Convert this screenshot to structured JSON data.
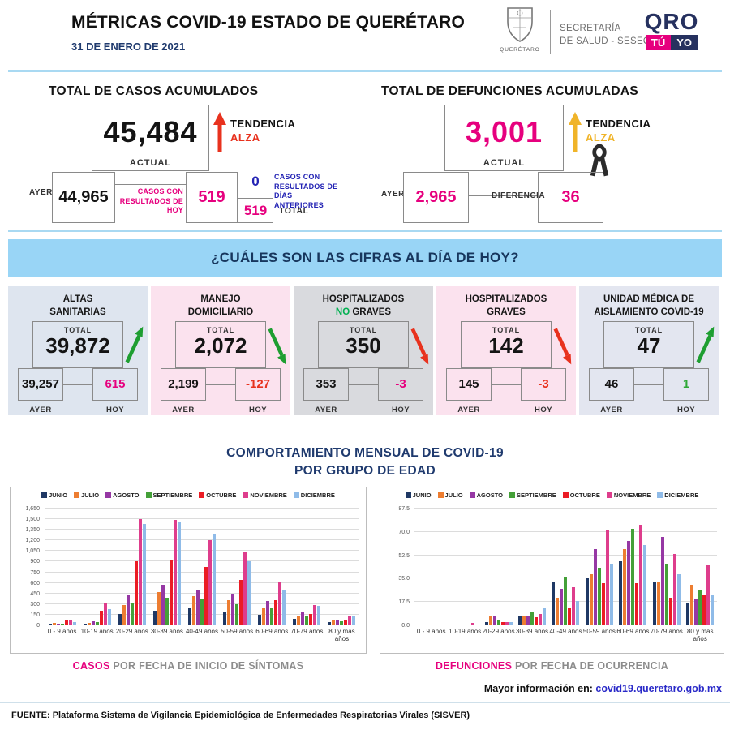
{
  "header": {
    "title": "MÉTRICAS COVID-19 ESTADO DE QUERÉTARO",
    "date": "31 DE ENERO DE 2021",
    "crest_caption": "QUERÉTARO",
    "secretaria_line1": "SECRETARÍA",
    "secretaria_line2": "DE SALUD - SESEQ",
    "logo_qro": "QRO",
    "logo_tu": "TÚ",
    "logo_yo": "YO"
  },
  "totales": {
    "casos": {
      "titulo": "TOTAL DE CASOS ACUMULADOS",
      "actual": "45,484",
      "actual_label": "ACTUAL",
      "tendencia_label": "TENDENCIA",
      "tendencia_valor": "ALZA",
      "tendencia_color": "#E8321E",
      "ayer_label": "AYER",
      "ayer": "44,965",
      "resultados_hoy_label": "CASOS CON RESULTADOS DE HOY",
      "resultados_hoy": "519",
      "dias_anteriores": "0",
      "dias_anteriores_label": "CASOS CON RESULTADOS DE DÍAS ANTERIORES",
      "total": "519",
      "total_label": "TOTAL"
    },
    "defunciones": {
      "titulo": "TOTAL DE DEFUNCIONES ACUMULADAS",
      "actual": "3,001",
      "actual_label": "ACTUAL",
      "tendencia_label": "TENDENCIA",
      "tendencia_valor": "ALZA",
      "tendencia_color": "#F0B429",
      "ayer_label": "AYER",
      "ayer": "2,965",
      "diferencia_label": "DIFERENCIA",
      "diferencia": "36"
    }
  },
  "banner": "¿CUÁLES SON LAS CIFRAS AL DÍA DE HOY?",
  "cards": [
    {
      "titulo_l1": "ALTAS",
      "titulo_l2": "SANITARIAS",
      "total_label": "TOTAL",
      "total": "39,872",
      "ayer": "39,257",
      "hoy": "615",
      "hoy_color": "#E6007E",
      "ayer_label": "AYER",
      "hoy_label": "HOY",
      "arrow": "up-green",
      "bg": "#DEE5EF"
    },
    {
      "titulo_l1": "MANEJO",
      "titulo_l2": "DOMICILIARIO",
      "total_label": "TOTAL",
      "total": "2,072",
      "ayer": "2,199",
      "hoy": "-127",
      "hoy_color": "#E8321E",
      "ayer_label": "AYER",
      "hoy_label": "HOY",
      "arrow": "down-green",
      "bg": "#FBE2EE"
    },
    {
      "titulo_l1": "HOSPITALIZADOS",
      "titulo_l2_prefix": "NO",
      "titulo_l2_prefix_color": "#00B050",
      "titulo_l2": " GRAVES",
      "total_label": "TOTAL",
      "total": "350",
      "ayer": "353",
      "hoy": "-3",
      "hoy_color": "#E6007E",
      "ayer_label": "AYER",
      "hoy_label": "HOY",
      "arrow": "down-red",
      "bg": "#D9DADE"
    },
    {
      "titulo_l1": "HOSPITALIZADOS",
      "titulo_l2": "GRAVES",
      "total_label": "TOTAL",
      "total": "142",
      "ayer": "145",
      "hoy": "-3",
      "hoy_color": "#E8321E",
      "ayer_label": "AYER",
      "hoy_label": "HOY",
      "arrow": "down-red",
      "bg": "#FBE2EE"
    },
    {
      "titulo_l1": "UNIDAD MÉDICA DE",
      "titulo_l2": "AISLAMIENTO COVID-19",
      "total_label": "TOTAL",
      "total": "47",
      "ayer": "46",
      "hoy": "1",
      "hoy_color": "#2EA836",
      "ayer_label": "AYER",
      "hoy_label": "HOY",
      "arrow": "up-green",
      "bg": "#E3E6F0"
    }
  ],
  "section_edad": {
    "titulo_l1": "COMPORTAMIENTO MENSUAL DE COVID-19",
    "titulo_l2": "POR GRUPO DE EDAD"
  },
  "captions": {
    "left_strong": "CASOS",
    "left_rest": " POR FECHA DE INICIO DE SÍNTOMAS",
    "right_strong": "DEFUNCIONES",
    "right_rest": " POR FECHA DE OCURRENCIA",
    "info_label": "Mayor información en: ",
    "info_link": "covid19.queretaro.gob.mx"
  },
  "chart_data": [
    {
      "type": "bar",
      "title": "CASOS POR FECHA DE INICIO DE SÍNTOMAS",
      "xlabel": "",
      "ylabel": "",
      "grid": true,
      "legend_position": "top",
      "ylim": [
        0,
        1650
      ],
      "yticks": [
        "0",
        "150",
        "300",
        "450",
        "600",
        "750",
        "900",
        "1,050",
        "1,200",
        "1,350",
        "1,500",
        "1,650"
      ],
      "categories": [
        "0 - 9 años",
        "10-19 años",
        "20-29 años",
        "30-39 años",
        "40-49 años",
        "50-59 años",
        "60-69 años",
        "70-79 años",
        "80 y mas años"
      ],
      "series": [
        {
          "name": "JUNIO",
          "color": "#1F3864",
          "values": [
            5,
            10,
            145,
            200,
            230,
            170,
            135,
            80,
            30
          ]
        },
        {
          "name": "JULIO",
          "color": "#ED7D31",
          "values": [
            20,
            25,
            280,
            460,
            405,
            345,
            235,
            120,
            65
          ]
        },
        {
          "name": "AGOSTO",
          "color": "#9638A4",
          "values": [
            15,
            45,
            410,
            565,
            490,
            440,
            330,
            180,
            55
          ]
        },
        {
          "name": "SEPTIEMBRE",
          "color": "#44A038",
          "values": [
            12,
            30,
            305,
            385,
            370,
            290,
            245,
            125,
            45
          ]
        },
        {
          "name": "OCTUBRE",
          "color": "#EB1C24",
          "values": [
            55,
            195,
            895,
            910,
            820,
            635,
            345,
            150,
            65
          ]
        },
        {
          "name": "NOVIEMBRE",
          "color": "#DE3D8C",
          "values": [
            60,
            310,
            1500,
            1485,
            1205,
            1035,
            610,
            275,
            120
          ]
        },
        {
          "name": "DICIEMBRE",
          "color": "#8FBBE8",
          "values": [
            35,
            220,
            1430,
            1465,
            1290,
            900,
            485,
            270,
            110
          ]
        }
      ]
    },
    {
      "type": "bar",
      "title": "DEFUNCIONES POR FECHA DE OCURRENCIA",
      "xlabel": "",
      "ylabel": "",
      "grid": true,
      "legend_position": "top",
      "ylim": [
        0,
        87.5
      ],
      "yticks": [
        "0.0",
        "17.5",
        "35.0",
        "52.5",
        "70.0",
        "87.5"
      ],
      "categories": [
        "0 - 9 años",
        "10-19 años",
        "20-29 años",
        "30-39 años",
        "40-49 años",
        "50-59 años",
        "60-69 años",
        "70-79 años",
        "80 y más años"
      ],
      "series": [
        {
          "name": "JUNIO",
          "color": "#1F3864",
          "values": [
            0,
            0,
            2,
            6,
            32,
            35,
            48,
            32,
            16
          ]
        },
        {
          "name": "JULIO",
          "color": "#ED7D31",
          "values": [
            0,
            0,
            6,
            6.5,
            20,
            38,
            57,
            32,
            30
          ]
        },
        {
          "name": "AGOSTO",
          "color": "#9638A4",
          "values": [
            0,
            0,
            7,
            7,
            27,
            57,
            63,
            66,
            19
          ]
        },
        {
          "name": "SEPTIEMBRE",
          "color": "#44A038",
          "values": [
            0,
            0,
            3,
            9,
            36,
            43,
            72,
            46,
            26
          ]
        },
        {
          "name": "OCTUBRE",
          "color": "#EB1C24",
          "values": [
            0,
            0,
            2,
            5.5,
            12,
            31,
            31,
            20,
            22
          ]
        },
        {
          "name": "NOVIEMBRE",
          "color": "#DE3D8C",
          "values": [
            0,
            1,
            2,
            8,
            28,
            71,
            75,
            53,
            45
          ]
        },
        {
          "name": "DICIEMBRE",
          "color": "#8FBBE8",
          "values": [
            0,
            0,
            2,
            12,
            17.5,
            46,
            60,
            38,
            22
          ]
        }
      ]
    }
  ],
  "footer": "FUENTE: Plataforma Sistema  de Vigilancia Epidemiológica de Enfermedades Respiratorias Virales (SISVER)"
}
